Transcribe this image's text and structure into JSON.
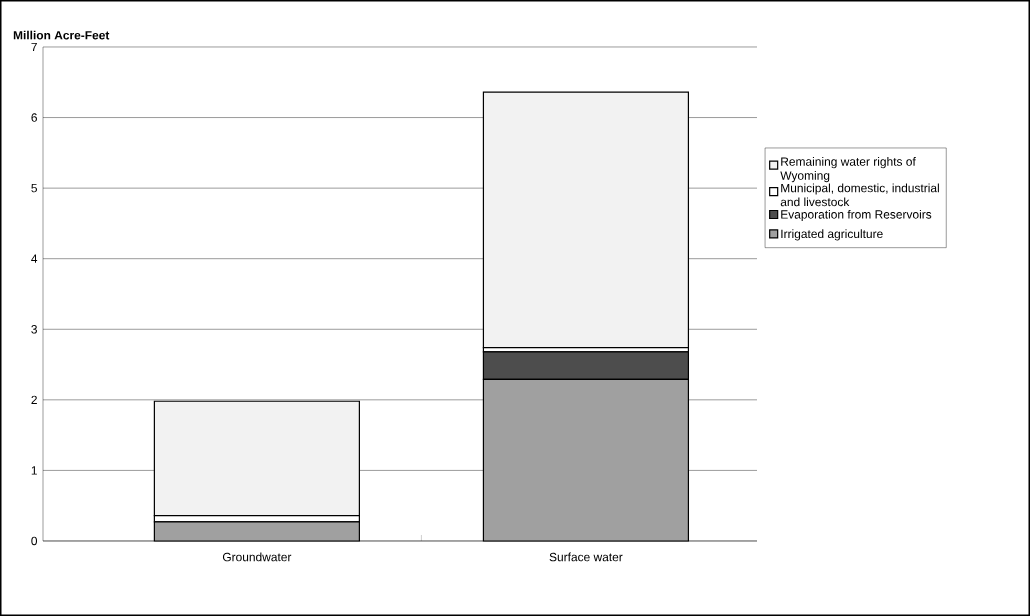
{
  "chart_data": {
    "type": "bar",
    "stacked": true,
    "ylabel": "Million Acre-Feet",
    "categories": [
      "Groundwater",
      "Surface water"
    ],
    "series": [
      {
        "name": "Irrigated agriculture",
        "color": "#a0a0a0",
        "values": [
          0.27,
          2.29
        ]
      },
      {
        "name": "Evaporation from Reservoirs",
        "color": "#4d4d4d",
        "values": [
          0,
          0.39
        ]
      },
      {
        "name": "Municipal, domestic, industrial and livestock",
        "color": "#ffffff",
        "values": [
          0.09,
          0.06
        ]
      },
      {
        "name": "Remaining water rights of Wyoming",
        "color": "#f2f2f2",
        "values": [
          1.62,
          3.62
        ]
      }
    ],
    "ylim": [
      0,
      7
    ],
    "yticks": [
      0,
      1,
      2,
      3,
      4,
      5,
      6,
      7
    ],
    "grid": "y",
    "legend": "right"
  }
}
